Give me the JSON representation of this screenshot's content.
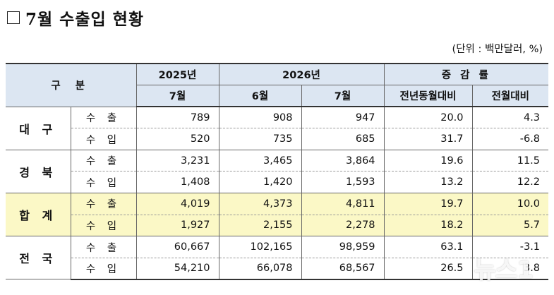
{
  "title": "7월 수출입 현황",
  "unit": "(단위 : 백만달러, %)",
  "header": {
    "division": "구 분",
    "year_2025": "2025년",
    "year_2026": "2026년",
    "change_rate": "증 감 률",
    "jul_2025": "7월",
    "jun_2026": "6월",
    "jul_2026": "7월",
    "yoy": "전년동월대비",
    "mom": "전월대비"
  },
  "regions": [
    {
      "name": "대 구",
      "highlight": false,
      "rows": [
        {
          "kind": "수 출",
          "jul_2025": "789",
          "jun_2026": "908",
          "jul_2026": "947",
          "yoy": "20.0",
          "mom": "4.3"
        },
        {
          "kind": "수 입",
          "jul_2025": "520",
          "jun_2026": "735",
          "jul_2026": "685",
          "yoy": "31.7",
          "mom": "-6.8"
        }
      ]
    },
    {
      "name": "경 북",
      "highlight": false,
      "rows": [
        {
          "kind": "수 출",
          "jul_2025": "3,231",
          "jun_2026": "3,465",
          "jul_2026": "3,864",
          "yoy": "19.6",
          "mom": "11.5"
        },
        {
          "kind": "수 입",
          "jul_2025": "1,408",
          "jun_2026": "1,420",
          "jul_2026": "1,593",
          "yoy": "13.2",
          "mom": "12.2"
        }
      ]
    },
    {
      "name": "합 계",
      "highlight": true,
      "rows": [
        {
          "kind": "수 출",
          "jul_2025": "4,019",
          "jun_2026": "4,373",
          "jul_2026": "4,811",
          "yoy": "19.7",
          "mom": "10.0"
        },
        {
          "kind": "수 입",
          "jul_2025": "1,927",
          "jun_2026": "2,155",
          "jul_2026": "2,278",
          "yoy": "18.2",
          "mom": "5.7"
        }
      ]
    },
    {
      "name": "전 국",
      "highlight": false,
      "rows": [
        {
          "kind": "수 출",
          "jul_2025": "60,667",
          "jun_2026": "102,165",
          "jul_2026": "98,959",
          "yoy": "63.1",
          "mom": "-3.1"
        },
        {
          "kind": "수 입",
          "jul_2025": "54,210",
          "jun_2026": "66,078",
          "jul_2026": "68,567",
          "yoy": "26.5",
          "mom": "3.8"
        }
      ]
    }
  ],
  "watermark": "뉴스1",
  "colors": {
    "header_bg": "#dce6f2",
    "highlight_bg": "#fbf8c6"
  }
}
